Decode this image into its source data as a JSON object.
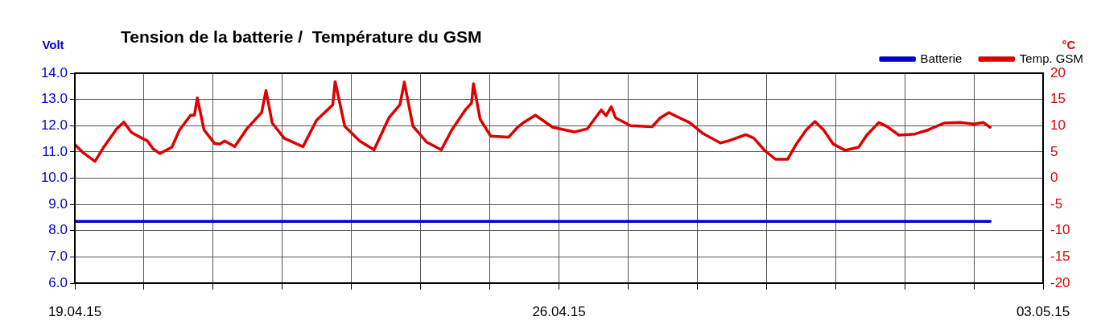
{
  "chart_data": {
    "type": "line",
    "title": "Tension de la batterie /  Température du GSM",
    "ylabel": "Volt",
    "y2label": "°C",
    "xlim": [
      "--04-19",
      "--05-03"
    ],
    "xticks": [
      {
        "value": "--04-19",
        "label": "19.04.15"
      },
      {
        "value": "--04-20",
        "label": null
      },
      {
        "value": "--04-21",
        "label": null
      },
      {
        "value": "--04-22",
        "label": null
      },
      {
        "value": "--04-23",
        "label": null
      },
      {
        "value": "--04-24",
        "label": null
      },
      {
        "value": "--04-25",
        "label": null
      },
      {
        "value": "--04-26",
        "label": "26.04.15"
      },
      {
        "value": "--04-27",
        "label": null
      },
      {
        "value": "--04-28",
        "label": null
      },
      {
        "value": "--04-29",
        "label": null
      },
      {
        "value": "--04-30",
        "label": null
      },
      {
        "value": "--05-01",
        "label": null
      },
      {
        "value": "--05-02",
        "label": null
      },
      {
        "value": "--05-03",
        "label": "03.05.15"
      }
    ],
    "ylim": [
      6,
      14
    ],
    "yticks": [
      {
        "value": 6,
        "label": "6.0"
      },
      {
        "value": 7,
        "label": "7.0"
      },
      {
        "value": 8,
        "label": "8.0"
      },
      {
        "value": 9,
        "label": "9.0"
      },
      {
        "value": 10,
        "label": "10.0"
      },
      {
        "value": 11,
        "label": "11.0"
      },
      {
        "value": 12,
        "label": "12.0"
      },
      {
        "value": 13,
        "label": "13.0"
      },
      {
        "value": 14,
        "label": "14.0"
      }
    ],
    "y2lim": [
      -20,
      20
    ],
    "y2ticks": [
      -20,
      -15,
      -10,
      -5,
      0,
      5,
      10,
      15,
      20
    ],
    "grid": true,
    "legend": "top right",
    "marker": "none",
    "line_style": "solid",
    "series": [
      {
        "name": "Batterie",
        "color": "#0000cc",
        "x": [
          "--04-19",
          "--04-20",
          "--04-21",
          "--04-22",
          "--04-23",
          "--04-24",
          "--04-25",
          "--04-26",
          "--04-27",
          "--04-28",
          "--04-29",
          "--04-30",
          "--05-01",
          "--05-02",
          "--05-02T05:40"
        ],
        "values": [
          8.35,
          8.35,
          8.35,
          8.35,
          8.35,
          8.35,
          8.35,
          8.35,
          8.35,
          8.35,
          8.35,
          8.35,
          8.35,
          8.35,
          8.35
        ]
      },
      {
        "name": "Temp. GSM",
        "color": "#dd0000",
        "axis": "y2",
        "x": [
          "--04-19T00:00",
          "--04-19T03:00",
          "--04-19T07:00",
          "--04-19T10:00",
          "--04-19T14:30",
          "--04-19T17:00",
          "--04-19T19:40",
          "--04-19T23:20",
          "--04-20T01:10",
          "--04-20T03:10",
          "--04-20T05:30",
          "--04-20T09:40",
          "--04-20T12:20",
          "--04-20T16:10",
          "--04-20T17:30",
          "--04-20T18:30",
          "--04-20T20:50",
          "--04-21T00:30",
          "--04-21T02:20",
          "--04-21T04:00",
          "--04-21T07:30",
          "--04-21T11:40",
          "--04-21T16:50",
          "--04-21T18:20",
          "--04-21T20:30",
          "--04-22T00:40",
          "--04-22T07:10",
          "--04-22T11:50",
          "--04-22T17:30",
          "--04-22T18:20",
          "--04-22T21:40",
          "--04-23T02:50",
          "--04-23T07:50",
          "--04-23T13:00",
          "--04-23T16:50",
          "--04-23T18:20",
          "--04-23T21:20",
          "--04-24T02:00",
          "--04-24T07:10",
          "--04-24T10:50",
          "--04-24T15:30",
          "--04-24T17:40",
          "--04-24T18:20",
          "--04-24T20:40",
          "--04-25T00:20",
          "--04-25T06:30",
          "--04-25T09:40",
          "--04-25T12:00",
          "--04-25T15:50",
          "--04-25T21:50",
          "--04-26T05:20",
          "--04-26T09:50",
          "--04-26T14:40",
          "--04-26T16:20",
          "--04-26T18:10",
          "--04-26T19:40",
          "--04-27T00:50",
          "--04-27T08:20",
          "--04-27T11:10",
          "--04-27T14:10",
          "--04-27T16:40",
          "--04-27T21:20",
          "--04-28T02:00",
          "--04-28T08:00",
          "--04-28T10:50",
          "--04-28T16:50",
          "--04-28T19:40",
          "--04-28T23:20",
          "--04-29T03:10",
          "--04-29T07:20",
          "--04-29T10:30",
          "--04-29T13:50",
          "--04-29T16:50",
          "--04-29T19:50",
          "--04-29T23:10",
          "--04-30T03:20",
          "--04-30T08:00",
          "--04-30T10:50",
          "--04-30T15:00",
          "--04-30T17:40",
          "--04-30T22:00",
          "--05-01T03:30",
          "--05-01T08:10",
          "--05-01T13:40",
          "--05-01T19:20",
          "--05-02T00:00",
          "--05-02T03:20",
          "--05-02T05:40"
        ],
        "values": [
          6.4,
          4.8,
          3.2,
          5.9,
          9.4,
          10.7,
          8.7,
          7.6,
          7.1,
          5.6,
          4.7,
          5.9,
          9.2,
          12.0,
          12.0,
          15.3,
          9.2,
          6.6,
          6.5,
          7.1,
          6.0,
          9.4,
          12.5,
          16.7,
          10.5,
          7.6,
          6.0,
          11.0,
          14.0,
          18.4,
          9.9,
          7.1,
          5.4,
          11.5,
          14.0,
          18.3,
          9.9,
          6.9,
          5.4,
          9.2,
          13.0,
          14.3,
          18.0,
          11.2,
          8.0,
          7.8,
          9.7,
          10.7,
          12.0,
          9.7,
          8.8,
          9.4,
          13.0,
          11.9,
          13.6,
          11.5,
          10.0,
          9.8,
          11.5,
          12.5,
          11.8,
          10.6,
          8.5,
          6.7,
          7.1,
          8.3,
          7.6,
          5.3,
          3.6,
          3.6,
          6.6,
          9.2,
          10.8,
          9.2,
          6.5,
          5.3,
          5.9,
          8.2,
          10.6,
          9.9,
          8.2,
          8.4,
          9.2,
          10.5,
          10.6,
          10.3,
          10.6,
          9.7
        ]
      }
    ]
  }
}
